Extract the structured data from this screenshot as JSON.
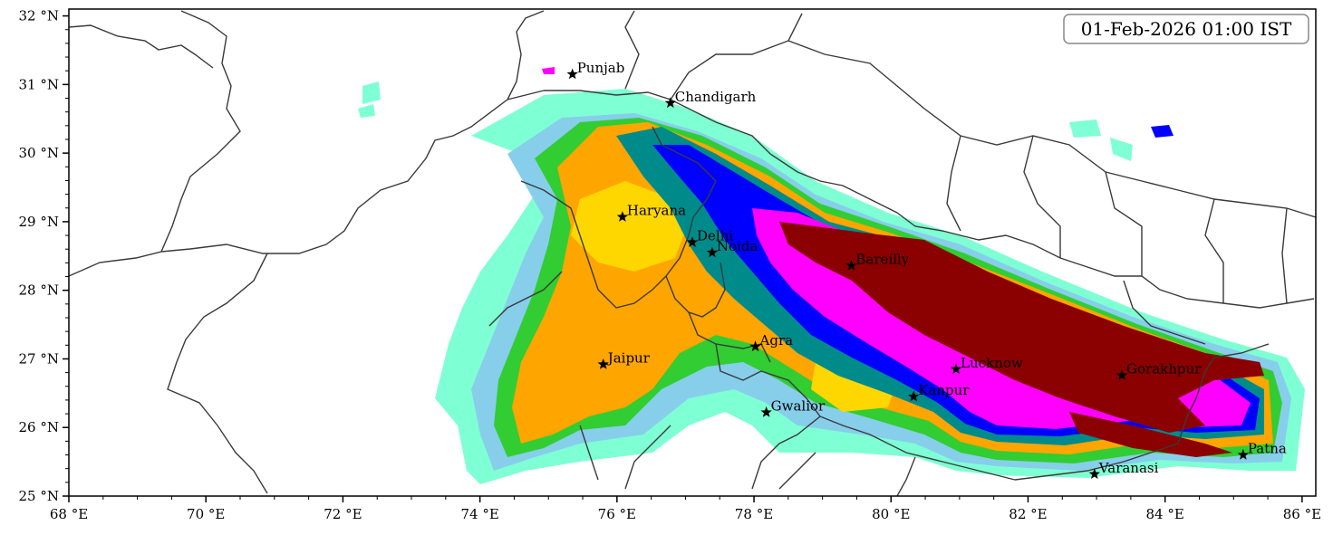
{
  "timestamp": "01-Feb-2026 01:00 IST",
  "x_ticks": [
    "68 °E",
    "70 °E",
    "72 °E",
    "74 °E",
    "76 °E",
    "78 °E",
    "80 °E",
    "82 °E",
    "84 °E",
    "86 °E"
  ],
  "y_ticks": [
    "32 °N",
    "31 °N",
    "30 °N",
    "29 °N",
    "28 °N",
    "27 °N",
    "26 °N",
    "25 °N"
  ],
  "map_extent": {
    "lon": [
      68,
      86.2
    ],
    "lat": [
      25,
      32.1
    ]
  },
  "palette": [
    "#7fffd4",
    "#87ceeb",
    "#32cd32",
    "#ffa500",
    "#ffd700",
    "#008b8b",
    "#0000ff",
    "#ff00ff",
    "#8b0000"
  ],
  "cities": [
    {
      "name": "Punjab",
      "lon": 75.35,
      "lat": 31.15
    },
    {
      "name": "Chandigarh",
      "lon": 76.78,
      "lat": 30.73
    },
    {
      "name": "Haryana",
      "lon": 76.08,
      "lat": 29.07
    },
    {
      "name": "Delhi",
      "lon": 77.1,
      "lat": 28.7
    },
    {
      "name": "Noida",
      "lon": 77.39,
      "lat": 28.55
    },
    {
      "name": "Bareilly",
      "lon": 79.42,
      "lat": 28.36
    },
    {
      "name": "Agra",
      "lon": 78.02,
      "lat": 27.18
    },
    {
      "name": "Jaipur",
      "lon": 75.8,
      "lat": 26.92
    },
    {
      "name": "Gwalior",
      "lon": 78.18,
      "lat": 26.22
    },
    {
      "name": "Lucknow",
      "lon": 80.95,
      "lat": 26.85
    },
    {
      "name": "Kanpur",
      "lon": 80.33,
      "lat": 26.45
    },
    {
      "name": "Gorakhpur",
      "lon": 83.37,
      "lat": 26.76
    },
    {
      "name": "Patna",
      "lon": 85.14,
      "lat": 25.6
    },
    {
      "name": "Varanasi",
      "lon": 82.97,
      "lat": 25.32
    }
  ]
}
